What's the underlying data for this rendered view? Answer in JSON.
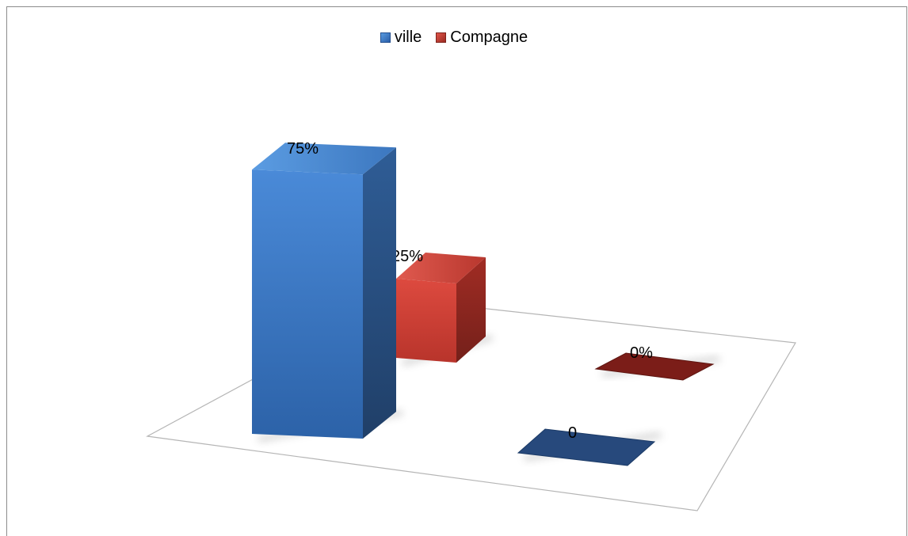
{
  "chart_data": {
    "type": "bar",
    "title": "",
    "categories": [
      "",
      ""
    ],
    "series": [
      {
        "name": "ville",
        "color": "#3a78c9",
        "values": [
          75,
          0
        ],
        "data_labels": [
          "75%",
          "0"
        ]
      },
      {
        "name": "Compagne",
        "color": "#c0392b",
        "values": [
          25,
          0
        ],
        "data_labels": [
          "25%",
          "0%"
        ]
      }
    ],
    "ylim": [
      0,
      100
    ],
    "grid": false,
    "legend_position": "top",
    "style": "3d-column"
  }
}
